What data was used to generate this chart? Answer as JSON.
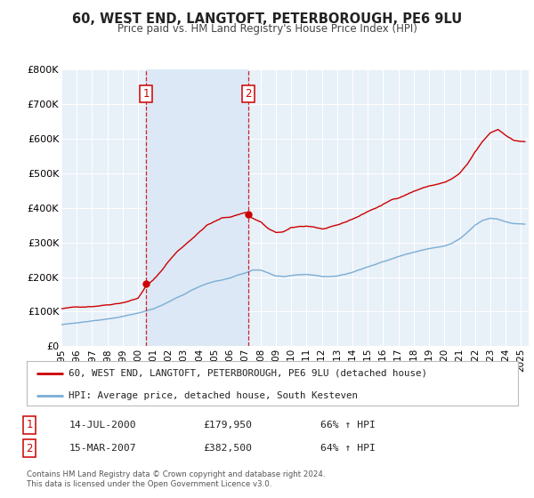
{
  "title": "60, WEST END, LANGTOFT, PETERBOROUGH, PE6 9LU",
  "subtitle": "Price paid vs. HM Land Registry's House Price Index (HPI)",
  "red_label": "60, WEST END, LANGTOFT, PETERBOROUGH, PE6 9LU (detached house)",
  "blue_label": "HPI: Average price, detached house, South Kesteven",
  "sale1_date": "14-JUL-2000",
  "sale1_price": 179950,
  "sale1_hpi": "66% ↑ HPI",
  "sale1_x": 2000.54,
  "sale2_date": "15-MAR-2007",
  "sale2_price": 382500,
  "sale2_hpi": "64% ↑ HPI",
  "sale2_x": 2007.21,
  "footer": "Contains HM Land Registry data © Crown copyright and database right 2024.\nThis data is licensed under the Open Government Licence v3.0.",
  "ylim": [
    0,
    800000
  ],
  "xlim_start": 1995.0,
  "xlim_end": 2025.5,
  "red_color": "#cc0000",
  "blue_color": "#7aadd4",
  "shade_color": "#dce8f5",
  "bg_color": "#e8f0f8",
  "grid_color": "#ffffff",
  "xtick_years": [
    1995,
    1996,
    1997,
    1998,
    1999,
    2000,
    2001,
    2002,
    2003,
    2004,
    2005,
    2006,
    2007,
    2008,
    2009,
    2010,
    2011,
    2012,
    2013,
    2014,
    2015,
    2016,
    2017,
    2018,
    2019,
    2020,
    2021,
    2022,
    2023,
    2024,
    2025
  ]
}
